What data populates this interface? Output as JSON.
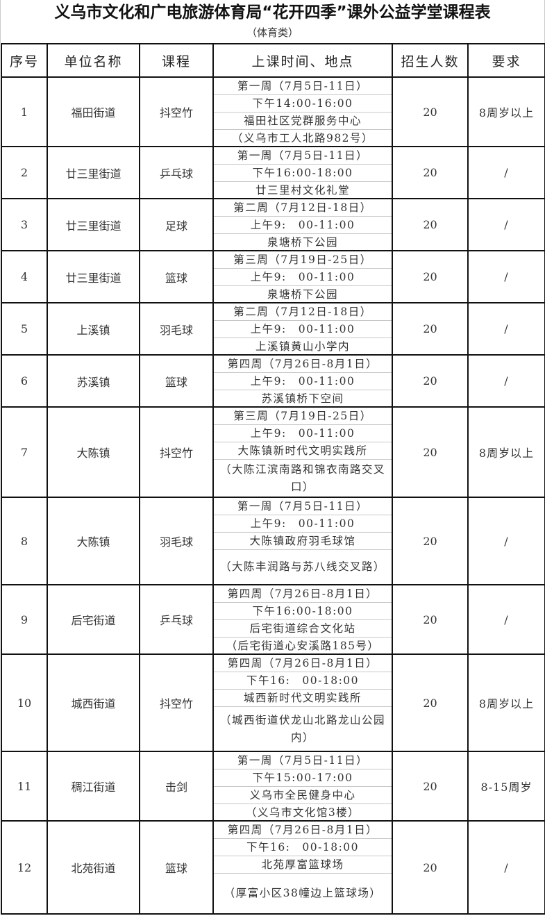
{
  "title": "义乌市文化和广电旅游体育局“花开四季”课外公益学堂课程表",
  "subtitle": "（体育类）",
  "headers": [
    "序号",
    "单位名称",
    "课程",
    "上课时间、地点",
    "招生人数",
    "要求"
  ],
  "rows": [
    {
      "no": "1",
      "unit": "福田街道",
      "course": "抖空竹",
      "time": [
        "第一周（7月5日-11日）",
        "下午14:00-16:00",
        "福田社区党群服务中心",
        "（义乌市工人北路982号）"
      ],
      "count": "20",
      "req": "8周岁以上"
    },
    {
      "no": "2",
      "unit": "廿三里街道",
      "course": "乒乓球",
      "time": [
        "第一周（7月5日-11日）",
        "下午16:00-18:00",
        "廿三里村文化礼堂"
      ],
      "count": "20",
      "req": "/"
    },
    {
      "no": "3",
      "unit": "廿三里街道",
      "course": "足球",
      "time": [
        "第二周（7月12日-18日）",
        "上午9:　00-11:00",
        "泉塘桥下公园"
      ],
      "count": "20",
      "req": "/"
    },
    {
      "no": "4",
      "unit": "廿三里街道",
      "course": "篮球",
      "time": [
        "第三周（7月19日-25日）",
        "上午9:　00-11:00",
        "泉塘桥下公园"
      ],
      "count": "20",
      "req": "/"
    },
    {
      "no": "5",
      "unit": "上溪镇",
      "course": "羽毛球",
      "time": [
        "第二周（7月12日-18日）",
        "上午9:　00-11:00",
        "上溪镇黄山小学内"
      ],
      "count": "20",
      "req": "/"
    },
    {
      "no": "6",
      "unit": "苏溪镇",
      "course": "篮球",
      "time": [
        "第四周（7月26日-8月1日）",
        "上午9:　00-11:00",
        "苏溪镇桥下空间"
      ],
      "count": "20",
      "req": "/"
    },
    {
      "no": "7",
      "unit": "大陈镇",
      "course": "抖空竹",
      "time": [
        "第三周（7月19日-25日）",
        "上午9:　00-11:00",
        "大陈镇新时代文明实践所",
        "（大陈江滨南路和锦衣南路交叉口）"
      ],
      "count": "20",
      "req": "8周岁以上"
    },
    {
      "no": "8",
      "unit": "大陈镇",
      "course": "羽毛球",
      "time": [
        "第一周（7月5日-11日）",
        "上午9:　00-11:00",
        "大陈镇政府羽毛球馆",
        "（大陈丰润路与苏八线交叉路）"
      ],
      "count": "20",
      "req": "/"
    },
    {
      "no": "9",
      "unit": "后宅街道",
      "course": "乒乓球",
      "time": [
        "第四周（7月26日-8月1日）",
        "下午16:00-18:00",
        "后宅街道综合文化站",
        "（后宅街道心安溪路185号）"
      ],
      "count": "20",
      "req": "/"
    },
    {
      "no": "10",
      "unit": "城西街道",
      "course": "抖空竹",
      "time": [
        "第四周（7月26日-8月1日）",
        "下午16:　00-18:00",
        "城西新时代文明实践所",
        "（城西街道伏龙山北路龙山公园内）"
      ],
      "count": "20",
      "req": "8周岁以上"
    },
    {
      "no": "11",
      "unit": "稠江街道",
      "course": "击剑",
      "time": [
        "第一周（7月5日-11日）",
        "下午15:00-17:00",
        "义乌市全民健身中心",
        "（义乌市文化馆3楼）"
      ],
      "count": "20",
      "req": "8-15周岁"
    },
    {
      "no": "12",
      "unit": "北苑街道",
      "course": "篮球",
      "time": [
        "第四周（7月26日-8月1日）",
        "下午16:　00-18:00",
        "北苑厚富篮球场",
        "（厚富小区38幢边上篮球场）"
      ],
      "count": "20",
      "req": "/"
    }
  ]
}
